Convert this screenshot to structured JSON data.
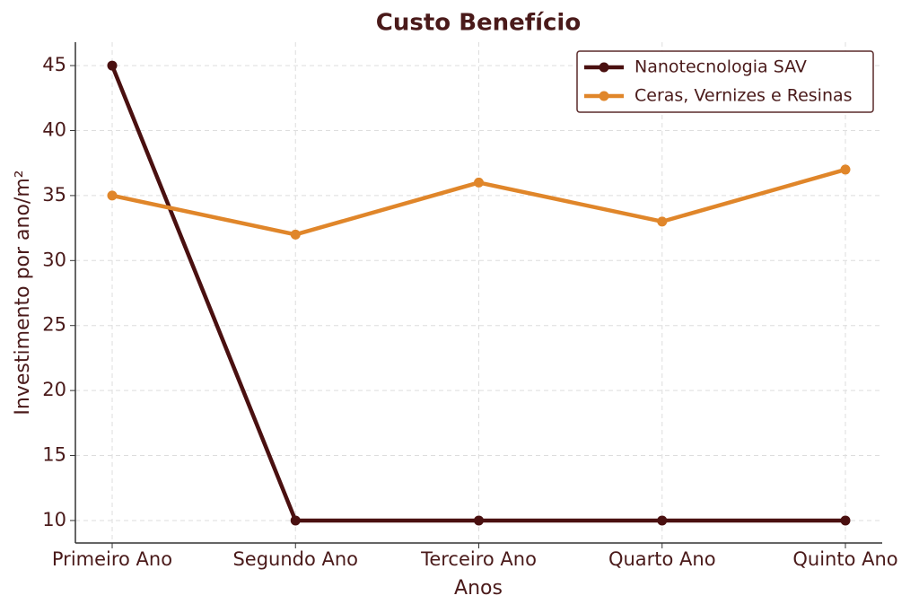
{
  "chart_data": {
    "type": "line",
    "title": "Custo Benefício",
    "x_label": "Anos",
    "y_label": "Investimento por ano/m²",
    "categories": [
      "Primeiro Ano",
      "Segundo Ano",
      "Terceiro Ano",
      "Quarto Ano",
      "Quinto Ano"
    ],
    "series": [
      {
        "name": "Nanotecnologia SAV",
        "color": "#4a1010",
        "values": [
          45,
          10,
          10,
          10,
          10
        ]
      },
      {
        "name": "Ceras, Vernizes e Resinas",
        "color": "#e0862a",
        "values": [
          35,
          32,
          36,
          33,
          37
        ]
      }
    ],
    "ylim": [
      8.27,
      46.8
    ],
    "yticks": [
      10,
      15,
      20,
      25,
      30,
      35,
      40,
      45
    ],
    "grid": true,
    "legend": "upper right"
  }
}
